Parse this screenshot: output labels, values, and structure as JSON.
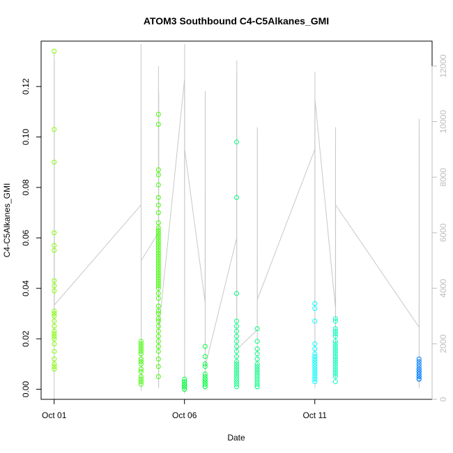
{
  "chart_data": {
    "type": "scatter",
    "title": "ATOM3 Southbound C4-C5Alkanes_GMI",
    "xlabel": "Date",
    "ylabel": "C4-C5Alkanes_GMI",
    "xlim": [
      "2016-09-30T12:00",
      "2016-10-15T12:00"
    ],
    "ylim": [
      -0.004,
      0.138
    ],
    "x_ticks": [
      {
        "value": "2016-10-01",
        "label": "Oct 01"
      },
      {
        "value": "2016-10-06",
        "label": "Oct 06"
      },
      {
        "value": "2016-10-11",
        "label": "Oct 11"
      }
    ],
    "y_ticks": [
      0.0,
      0.02,
      0.04,
      0.06,
      0.08,
      0.1,
      0.12
    ],
    "y_tick_labels": [
      "0.00",
      "0.02",
      "0.04",
      "0.06",
      "0.08",
      "0.10",
      "0.12"
    ],
    "y2_ticks": [
      0,
      2000,
      4000,
      6000,
      8000,
      10000,
      12000
    ],
    "y2_tick_labels": [
      "0",
      "2000",
      "4000",
      "6000",
      "8000",
      "10000",
      "12000"
    ],
    "y2lim": [
      0,
      12900
    ],
    "grid": false,
    "legend": "none",
    "marker": "open-circle",
    "colors": {
      "altitude_line": "#c8c8c8",
      "flight_colors": [
        "#80ff00",
        "#40ff00",
        "#00ff40",
        "#00ff80",
        "#00ffc0",
        "#00ffff",
        "#00c0ff",
        "#0080ff"
      ]
    },
    "series": [
      {
        "color": "#80ff00",
        "x": [
          "2016-10-01T00:00",
          "2016-10-01T00:00",
          "2016-10-01T00:00",
          "2016-10-01T00:01",
          "2016-10-01T00:01",
          "2016-10-01T00:01",
          "2016-10-01T00:02",
          "2016-10-01T00:02",
          "2016-10-01T00:02",
          "2016-10-01T00:03",
          "2016-10-01T00:03",
          "2016-10-01T00:03",
          "2016-10-01T00:04",
          "2016-10-01T00:04",
          "2016-10-01T00:04",
          "2016-10-01T00:05",
          "2016-10-01T00:05",
          "2016-10-01T00:05",
          "2016-10-01T00:06",
          "2016-10-01T00:06",
          "2016-10-01T00:06",
          "2016-10-01T00:07",
          "2016-10-01T00:07",
          "2016-10-01T00:08"
        ],
        "y": [
          0.134,
          0.103,
          0.09,
          0.062,
          0.057,
          0.055,
          0.043,
          0.041,
          0.039,
          0.031,
          0.03,
          0.029,
          0.027,
          0.025,
          0.023,
          0.022,
          0.021,
          0.02,
          0.018,
          0.015,
          0.012,
          0.01,
          0.009,
          0.008
        ]
      },
      {
        "color": "#40ff00",
        "x": [
          "2016-10-04T08:00",
          "2016-10-04T08:00",
          "2016-10-04T08:00",
          "2016-10-04T08:00",
          "2016-10-04T08:00",
          "2016-10-04T08:00",
          "2016-10-04T08:00",
          "2016-10-04T08:00",
          "2016-10-04T08:00",
          "2016-10-04T08:00",
          "2016-10-04T08:00",
          "2016-10-04T08:00",
          "2016-10-04T08:00",
          "2016-10-04T08:00",
          "2016-10-04T08:00"
        ],
        "y": [
          0.019,
          0.018,
          0.017,
          0.016,
          0.015,
          0.014,
          0.012,
          0.011,
          0.01,
          0.008,
          0.007,
          0.005,
          0.004,
          0.003,
          0.002
        ]
      },
      {
        "color": "#40ff00",
        "x": [
          "2016-10-05T00:00",
          "2016-10-05T00:00",
          "2016-10-05T00:00",
          "2016-10-05T00:00",
          "2016-10-05T00:00",
          "2016-10-05T00:00",
          "2016-10-05T00:00",
          "2016-10-05T00:00",
          "2016-10-05T00:00",
          "2016-10-05T00:00",
          "2016-10-05T00:00",
          "2016-10-05T00:00",
          "2016-10-05T00:00",
          "2016-10-05T00:00",
          "2016-10-05T00:00",
          "2016-10-05T00:00",
          "2016-10-05T00:00",
          "2016-10-05T00:00",
          "2016-10-05T00:00",
          "2016-10-05T00:00",
          "2016-10-05T00:00",
          "2016-10-05T00:00",
          "2016-10-05T00:00",
          "2016-10-05T00:00",
          "2016-10-05T00:00",
          "2016-10-05T00:00",
          "2016-10-05T00:00",
          "2016-10-05T00:00",
          "2016-10-05T00:00",
          "2016-10-05T00:00",
          "2016-10-05T00:00",
          "2016-10-05T00:00",
          "2016-10-05T00:00",
          "2016-10-05T00:00",
          "2016-10-05T00:00",
          "2016-10-05T00:00",
          "2016-10-05T00:00",
          "2016-10-05T00:00",
          "2016-10-05T00:00",
          "2016-10-05T00:00",
          "2016-10-05T00:00",
          "2016-10-05T00:00",
          "2016-10-05T00:00",
          "2016-10-05T00:00",
          "2016-10-05T00:00",
          "2016-10-05T00:00",
          "2016-10-05T00:00",
          "2016-10-05T00:00",
          "2016-10-05T00:00",
          "2016-10-05T00:00"
        ],
        "y": [
          0.109,
          0.105,
          0.087,
          0.085,
          0.081,
          0.076,
          0.073,
          0.07,
          0.066,
          0.064,
          0.063,
          0.062,
          0.061,
          0.06,
          0.059,
          0.058,
          0.057,
          0.056,
          0.055,
          0.054,
          0.053,
          0.052,
          0.051,
          0.05,
          0.049,
          0.048,
          0.047,
          0.046,
          0.045,
          0.044,
          0.043,
          0.042,
          0.041,
          0.04,
          0.038,
          0.036,
          0.033,
          0.031,
          0.03,
          0.028,
          0.027,
          0.025,
          0.023,
          0.021,
          0.019,
          0.017,
          0.015,
          0.012,
          0.009,
          0.005
        ]
      },
      {
        "color": "#00ff40",
        "x": [
          "2016-10-06T00:00",
          "2016-10-06T00:00",
          "2016-10-06T00:00",
          "2016-10-06T00:00",
          "2016-10-06T00:00",
          "2016-10-06T00:00",
          "2016-10-06T00:00",
          "2016-10-06T00:00",
          "2016-10-06T00:00",
          "2016-10-06T00:00",
          "2016-10-06T00:00",
          "2016-10-06T00:00"
        ],
        "y": [
          0.004,
          0.003,
          0.003,
          0.002,
          0.002,
          0.002,
          0.001,
          0.001,
          0.001,
          0.001,
          0.0,
          0.0
        ]
      },
      {
        "color": "#00ff40",
        "x": [
          "2016-10-06T19:00",
          "2016-10-06T19:00",
          "2016-10-06T19:00",
          "2016-10-06T19:00",
          "2016-10-06T19:00",
          "2016-10-06T19:00",
          "2016-10-06T19:00",
          "2016-10-06T19:00",
          "2016-10-06T19:00",
          "2016-10-06T19:00",
          "2016-10-06T19:00",
          "2016-10-06T19:00",
          "2016-10-06T19:00",
          "2016-10-06T19:00"
        ],
        "y": [
          0.017,
          0.013,
          0.01,
          0.009,
          0.006,
          0.005,
          0.004,
          0.004,
          0.003,
          0.003,
          0.002,
          0.002,
          0.001,
          0.001
        ]
      },
      {
        "color": "#00ff80",
        "x": [
          "2016-10-08T00:00",
          "2016-10-08T00:00",
          "2016-10-08T00:00",
          "2016-10-08T00:00",
          "2016-10-08T00:00",
          "2016-10-08T00:00",
          "2016-10-08T00:00",
          "2016-10-08T00:00",
          "2016-10-08T00:00",
          "2016-10-08T00:00",
          "2016-10-08T00:00",
          "2016-10-08T00:00",
          "2016-10-08T00:00",
          "2016-10-08T00:00",
          "2016-10-08T00:00",
          "2016-10-08T00:00",
          "2016-10-08T00:00",
          "2016-10-08T00:00",
          "2016-10-08T00:00",
          "2016-10-08T00:00",
          "2016-10-08T00:00",
          "2016-10-08T00:00"
        ],
        "y": [
          0.098,
          0.076,
          0.038,
          0.027,
          0.025,
          0.023,
          0.021,
          0.019,
          0.017,
          0.015,
          0.013,
          0.011,
          0.01,
          0.009,
          0.008,
          0.007,
          0.006,
          0.005,
          0.004,
          0.003,
          0.002,
          0.001
        ]
      },
      {
        "color": "#00ff80",
        "x": [
          "2016-10-08T19:00",
          "2016-10-08T19:00",
          "2016-10-08T19:00",
          "2016-10-08T19:00",
          "2016-10-08T19:00",
          "2016-10-08T19:00",
          "2016-10-08T19:00",
          "2016-10-08T19:00",
          "2016-10-08T19:00",
          "2016-10-08T19:00",
          "2016-10-08T19:00",
          "2016-10-08T19:00",
          "2016-10-08T19:00",
          "2016-10-08T19:00",
          "2016-10-08T19:00",
          "2016-10-08T19:00"
        ],
        "y": [
          0.024,
          0.019,
          0.016,
          0.014,
          0.012,
          0.01,
          0.009,
          0.008,
          0.007,
          0.006,
          0.005,
          0.004,
          0.003,
          0.002,
          0.001,
          0.001
        ]
      },
      {
        "color": "#00ffff",
        "x": [
          "2016-10-11T00:00",
          "2016-10-11T00:00",
          "2016-10-11T00:00",
          "2016-10-11T00:00",
          "2016-10-11T00:00",
          "2016-10-11T00:00",
          "2016-10-11T00:00",
          "2016-10-11T00:00",
          "2016-10-11T00:00",
          "2016-10-11T00:00",
          "2016-10-11T00:00",
          "2016-10-11T00:00",
          "2016-10-11T00:00",
          "2016-10-11T00:00",
          "2016-10-11T00:00",
          "2016-10-11T00:00",
          "2016-10-11T00:00"
        ],
        "y": [
          0.034,
          0.032,
          0.027,
          0.018,
          0.016,
          0.014,
          0.013,
          0.012,
          0.011,
          0.01,
          0.009,
          0.008,
          0.007,
          0.006,
          0.005,
          0.004,
          0.003
        ]
      },
      {
        "color": "#00ffc0",
        "x": [
          "2016-10-11T19:00",
          "2016-10-11T19:00",
          "2016-10-11T19:00",
          "2016-10-11T19:00",
          "2016-10-11T19:00",
          "2016-10-11T19:00",
          "2016-10-11T19:00",
          "2016-10-11T19:00",
          "2016-10-11T19:00",
          "2016-10-11T19:00",
          "2016-10-11T19:00",
          "2016-10-11T19:00",
          "2016-10-11T19:00",
          "2016-10-11T19:00",
          "2016-10-11T19:00",
          "2016-10-11T19:00",
          "2016-10-11T19:00",
          "2016-10-11T19:00",
          "2016-10-11T19:00",
          "2016-10-11T19:00",
          "2016-10-11T19:00",
          "2016-10-11T19:00"
        ],
        "y": [
          0.028,
          0.027,
          0.024,
          0.023,
          0.022,
          0.021,
          0.019,
          0.018,
          0.017,
          0.016,
          0.015,
          0.014,
          0.013,
          0.012,
          0.011,
          0.01,
          0.009,
          0.008,
          0.007,
          0.006,
          0.005,
          0.003
        ]
      },
      {
        "color": "#0080ff",
        "x": [
          "2016-10-15T00:00",
          "2016-10-15T00:00",
          "2016-10-15T00:00",
          "2016-10-15T00:00",
          "2016-10-15T00:00",
          "2016-10-15T00:00",
          "2016-10-15T00:00",
          "2016-10-15T00:00",
          "2016-10-15T00:00",
          "2016-10-15T00:00",
          "2016-10-15T00:00",
          "2016-10-15T00:00",
          "2016-10-15T00:00",
          "2016-10-15T00:00",
          "2016-10-15T00:00",
          "2016-10-15T00:00"
        ],
        "y": [
          0.012,
          0.011,
          0.01,
          0.009,
          0.008,
          0.008,
          0.007,
          0.007,
          0.006,
          0.006,
          0.005,
          0.005,
          0.005,
          0.004,
          0.004,
          0.004
        ]
      }
    ],
    "altitude_series": {
      "y_axis": "right",
      "x": [
        "2016-10-01T00:00",
        "2016-10-01T00:03",
        "2016-10-01T00:05",
        "2016-10-01T00:07",
        "2016-10-01T00:09",
        "2016-10-01T00:11",
        "2016-10-01T00:13",
        "2016-10-01T00:15",
        "2016-10-01T00:17",
        "2016-10-04T08:00",
        "2016-10-04T08:03",
        "2016-10-04T08:05",
        "2016-10-04T08:08",
        "2016-10-04T08:11",
        "2016-10-04T08:13",
        "2016-10-05T00:00",
        "2016-10-05T00:02",
        "2016-10-05T00:04",
        "2016-10-05T00:06",
        "2016-10-05T00:08",
        "2016-10-05T00:10",
        "2016-10-05T00:12",
        "2016-10-05T00:14",
        "2016-10-05T00:16",
        "2016-10-05T00:18",
        "2016-10-05T00:20",
        "2016-10-06T00:00",
        "2016-10-06T00:02",
        "2016-10-06T00:04",
        "2016-10-06T00:06",
        "2016-10-06T00:08",
        "2016-10-06T00:10",
        "2016-10-06T00:12",
        "2016-10-06T19:00",
        "2016-10-06T19:02",
        "2016-10-06T19:04",
        "2016-10-06T19:06",
        "2016-10-06T19:08",
        "2016-10-06T19:10",
        "2016-10-08T00:00",
        "2016-10-08T00:02",
        "2016-10-08T00:04",
        "2016-10-08T00:06",
        "2016-10-08T00:08",
        "2016-10-08T00:10",
        "2016-10-08T00:12",
        "2016-10-08T19:00",
        "2016-10-08T19:02",
        "2016-10-08T19:04",
        "2016-10-08T19:06",
        "2016-10-08T19:08",
        "2016-10-11T00:00",
        "2016-10-11T00:02",
        "2016-10-11T00:04",
        "2016-10-11T00:06",
        "2016-10-11T00:08",
        "2016-10-11T00:10",
        "2016-10-11T19:00",
        "2016-10-11T19:02",
        "2016-10-11T19:04",
        "2016-10-11T19:06",
        "2016-10-11T19:08",
        "2016-10-11T19:10",
        "2016-10-15T00:00",
        "2016-10-15T00:02",
        "2016-10-15T00:04",
        "2016-10-15T00:06",
        "2016-10-15T00:08",
        "2016-10-15T00:10"
      ],
      "y": [
        0,
        12300,
        12500,
        11000,
        3000,
        12200,
        8000,
        3500,
        3400,
        7000,
        12800,
        6800,
        300,
        4200,
        5000,
        6000,
        12000,
        3000,
        11200,
        500,
        11100,
        2800,
        11000,
        400,
        11000,
        2500,
        11500,
        200,
        11300,
        600,
        12800,
        8000,
        9000,
        3500,
        11000,
        800,
        11100,
        800,
        1200,
        5800,
        11700,
        900,
        11800,
        800,
        12200,
        1800,
        2500,
        9700,
        900,
        9800,
        3600,
        9000,
        10600,
        800,
        11800,
        400,
        10800,
        3300,
        9100,
        800,
        9800,
        700,
        7000,
        2600,
        9900,
        500,
        10100,
        400,
        9500
      ]
    }
  }
}
